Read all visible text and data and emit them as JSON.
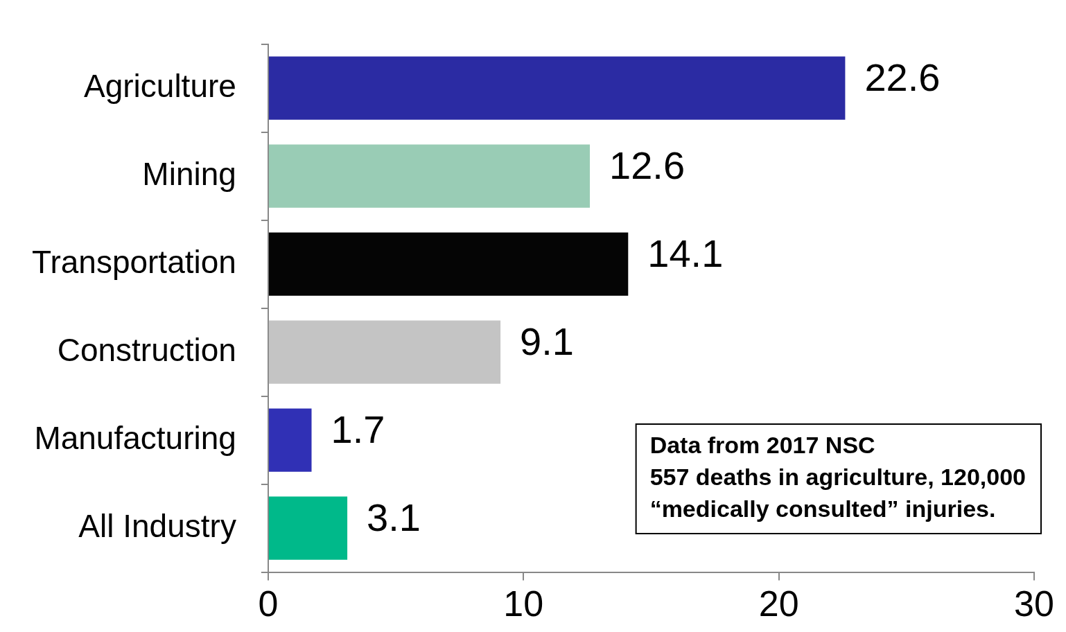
{
  "chart_data": {
    "type": "bar",
    "orientation": "horizontal",
    "categories": [
      "Agriculture",
      "Mining",
      "Transportation",
      "Construction",
      "Manufacturing",
      "All Industry"
    ],
    "values": [
      22.6,
      12.6,
      14.1,
      9.1,
      1.7,
      3.1
    ],
    "colors": [
      "#2b2ba3",
      "#99ccb5",
      "#050505",
      "#c4c4c4",
      "#3030b5",
      "#00b98a"
    ],
    "xlim": [
      0,
      30
    ],
    "xticks": [
      0,
      10,
      20,
      30
    ],
    "grid": false,
    "legend": false,
    "data_labels": true,
    "annotations": [
      "Data from 2017 NSC",
      "557 deaths in agriculture, 120,000",
      "“medically consulted” injuries."
    ]
  }
}
